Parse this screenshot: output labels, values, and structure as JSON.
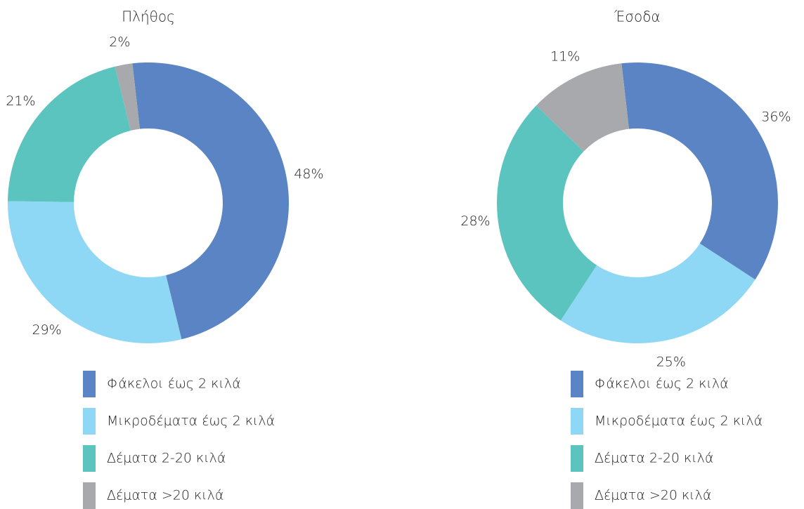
{
  "chart_data": [
    {
      "type": "donut",
      "title": "Πλήθος",
      "categories": [
        "Φάκελοι έως 2 κιλά",
        "Μικροδέματα έως 2 κιλά",
        "Δέματα 2-20 κιλά",
        "Δέματα >20 κιλά"
      ],
      "values": [
        48,
        29,
        21,
        2
      ],
      "value_labels": [
        "48%",
        "29%",
        "21%",
        "2%"
      ],
      "colors": [
        "#5b84c4",
        "#8fd8f5",
        "#5bc4bf",
        "#a7a9ac"
      ]
    },
    {
      "type": "donut",
      "title": "Έσοδα",
      "categories": [
        "Φάκελοι έως 2 κιλά",
        "Μικροδέματα έως 2 κιλά",
        "Δέματα 2-20 κιλά",
        "Δέματα >20 κιλά"
      ],
      "values": [
        36,
        25,
        28,
        11
      ],
      "value_labels": [
        "36%",
        "25%",
        "28%",
        "11%"
      ],
      "colors": [
        "#5b84c4",
        "#8fd8f5",
        "#5bc4bf",
        "#a7a9ac"
      ]
    }
  ]
}
